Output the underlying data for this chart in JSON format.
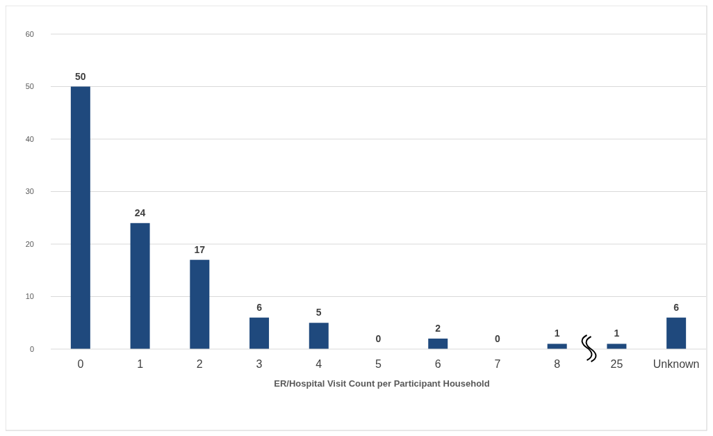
{
  "chart_data": {
    "type": "bar",
    "xlabel": "ER/Hospital Visit Count per Participant  Household",
    "categories": [
      "0",
      "1",
      "2",
      "3",
      "4",
      "5",
      "6",
      "7",
      "8",
      "25",
      "Unknown"
    ],
    "values": [
      50,
      24,
      17,
      6,
      5,
      0,
      2,
      0,
      1,
      1,
      6
    ],
    "color": "#1f497d",
    "ylim": [
      0,
      60
    ],
    "yticks": [
      0,
      10,
      20,
      30,
      40,
      50,
      60
    ],
    "grid": "y",
    "data_labels": true
  }
}
